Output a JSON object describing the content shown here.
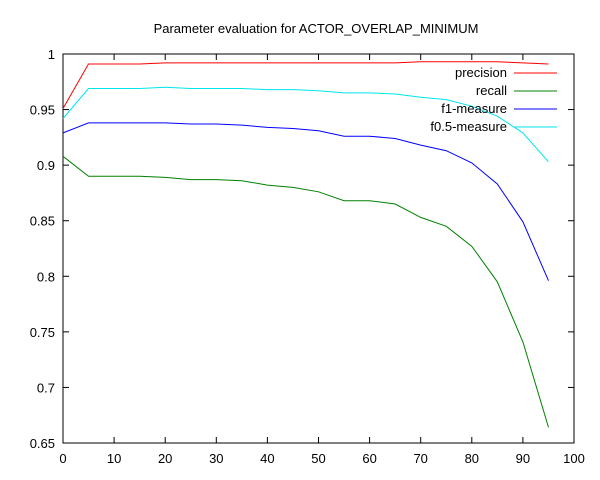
{
  "chart_data": {
    "type": "line",
    "title": "Parameter evaluation for ACTOR_OVERLAP_MINIMUM",
    "xlabel": "",
    "ylabel": "",
    "xlim": [
      0,
      100
    ],
    "ylim": [
      0.65,
      1.0
    ],
    "x_ticks": [
      "0",
      "10",
      "20",
      "30",
      "40",
      "50",
      "60",
      "70",
      "80",
      "90",
      "100"
    ],
    "y_ticks": [
      "0.65",
      "0.7",
      "0.75",
      "0.8",
      "0.85",
      "0.9",
      "0.95",
      "1"
    ],
    "grid": false,
    "legend_position": "top-right",
    "x": [
      0,
      5,
      10,
      15,
      20,
      25,
      30,
      35,
      40,
      45,
      50,
      55,
      60,
      65,
      70,
      75,
      80,
      85,
      90,
      95
    ],
    "series": [
      {
        "name": "precision",
        "color": "#ff0000",
        "values": [
          0.951,
          0.991,
          0.991,
          0.991,
          0.992,
          0.992,
          0.992,
          0.992,
          0.992,
          0.992,
          0.992,
          0.992,
          0.992,
          0.992,
          0.993,
          0.993,
          0.993,
          0.993,
          0.992,
          0.991
        ]
      },
      {
        "name": "recall",
        "color": "#008000",
        "values": [
          0.908,
          0.89,
          0.89,
          0.89,
          0.889,
          0.887,
          0.887,
          0.886,
          0.882,
          0.88,
          0.876,
          0.868,
          0.868,
          0.865,
          0.853,
          0.845,
          0.827,
          0.795,
          0.741,
          0.664
        ]
      },
      {
        "name": "f1-measure",
        "color": "#0000ff",
        "values": [
          0.929,
          0.938,
          0.938,
          0.938,
          0.938,
          0.937,
          0.937,
          0.936,
          0.934,
          0.933,
          0.931,
          0.926,
          0.926,
          0.924,
          0.918,
          0.913,
          0.902,
          0.883,
          0.849,
          0.796
        ]
      },
      {
        "name": "f0.5-measure",
        "color": "#00e5ee",
        "values": [
          0.942,
          0.969,
          0.969,
          0.969,
          0.97,
          0.969,
          0.969,
          0.969,
          0.968,
          0.968,
          0.967,
          0.965,
          0.965,
          0.964,
          0.961,
          0.959,
          0.953,
          0.944,
          0.929,
          0.903
        ]
      }
    ]
  }
}
